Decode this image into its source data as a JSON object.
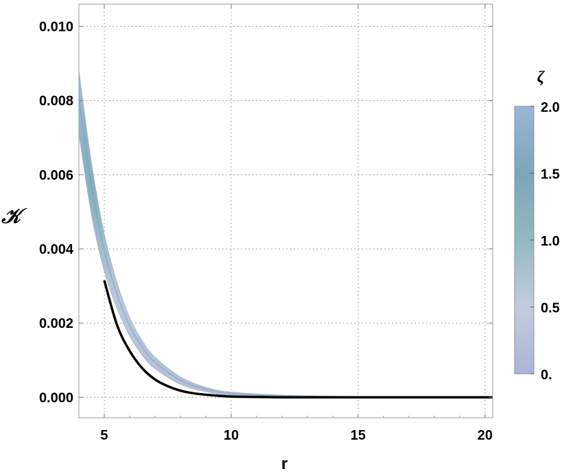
{
  "chart_data": {
    "type": "area",
    "xlabel": "r",
    "ylabel": "𝒦",
    "xlim": [
      4.0,
      20.3
    ],
    "ylim": [
      -0.00055,
      0.0106
    ],
    "x_ticks": [
      {
        "value": 5,
        "label": "5"
      },
      {
        "value": 10,
        "label": "10"
      },
      {
        "value": 15,
        "label": "15"
      },
      {
        "value": 20,
        "label": "20"
      }
    ],
    "y_ticks": [
      {
        "value": 0.0,
        "label": "0.000"
      },
      {
        "value": 0.002,
        "label": "0.002"
      },
      {
        "value": 0.004,
        "label": "0.004"
      },
      {
        "value": 0.006,
        "label": "0.006"
      },
      {
        "value": 0.008,
        "label": "0.008"
      },
      {
        "value": 0.01,
        "label": "0.010"
      }
    ],
    "grid": true,
    "band": {
      "parameter": "ζ",
      "range": [
        0,
        2
      ],
      "x": [
        4.0,
        4.5,
        5.0,
        5.5,
        6.0,
        6.5,
        7.0,
        8.0,
        9.0,
        10.0,
        12.0,
        14.0,
        16.0,
        18.0,
        20.3
      ],
      "lower": [
        0.0071,
        0.0049,
        0.0034,
        0.0024,
        0.00165,
        0.00113,
        0.00077,
        0.00035,
        0.00015,
        6e-05,
        1e-05,
        0.0,
        0.0,
        0.0,
        0.0
      ],
      "upper": [
        0.0088,
        0.0063,
        0.0044,
        0.0031,
        0.00215,
        0.00152,
        0.00108,
        0.00055,
        0.00027,
        0.00014,
        6e-05,
        3e-05,
        2e-05,
        1e-05,
        0.0
      ]
    },
    "series": [
      {
        "x": [
          5.0,
          5.5,
          6.0,
          6.5,
          7.0,
          7.5,
          8.0,
          8.5,
          9.0,
          10.0,
          11.0,
          12.0,
          14.0,
          16.0,
          18.0,
          20.3
        ],
        "y": [
          0.00315,
          0.00195,
          0.00125,
          0.00078,
          0.00048,
          0.0003,
          0.00018,
          0.00011,
          7e-05,
          2e-05,
          1e-05,
          0.0,
          0.0,
          0.0,
          0.0,
          0.0
        ]
      }
    ],
    "colorbar": {
      "title": "ζ",
      "min": 0,
      "max": 2,
      "ticks": [
        {
          "value": 0,
          "label": "0."
        },
        {
          "value": 0.5,
          "label": "0.5"
        },
        {
          "value": 1.0,
          "label": "1.0"
        },
        {
          "value": 1.5,
          "label": "1.5"
        },
        {
          "value": 2.0,
          "label": "2.0"
        }
      ],
      "gradient_stops": [
        {
          "value": 0.0,
          "color": "#aab5d6"
        },
        {
          "value": 0.5,
          "color": "#c4ccdc"
        },
        {
          "value": 1.0,
          "color": "#93b9c0"
        },
        {
          "value": 1.5,
          "color": "#7aa6b8"
        },
        {
          "value": 2.0,
          "color": "#9cb6d6"
        }
      ]
    },
    "curve_color": "#000000",
    "legend_position": "right"
  }
}
